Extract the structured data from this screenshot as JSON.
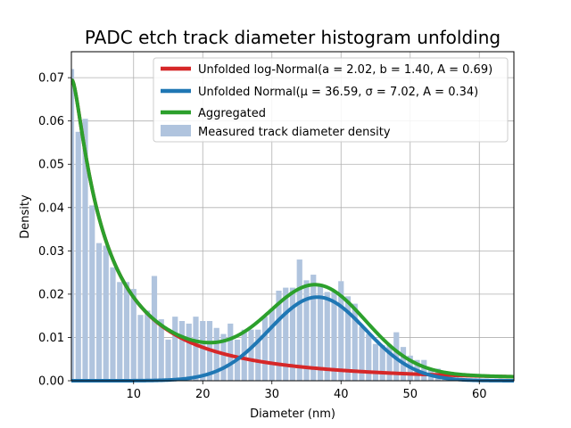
{
  "chart_data": {
    "type": "bar",
    "title": "PADC etch track diameter histogram unfolding",
    "xlabel": "Diameter (nm)",
    "ylabel": "Density",
    "xlim": [
      1,
      65
    ],
    "ylim": [
      0,
      0.076
    ],
    "x_ticks": [
      10,
      20,
      30,
      40,
      50,
      60
    ],
    "x_tick_labels": [
      "10",
      "20",
      "30",
      "40",
      "50",
      "60"
    ],
    "y_ticks": [
      0,
      0.01,
      0.02,
      0.03,
      0.04,
      0.05,
      0.06,
      0.07
    ],
    "y_tick_labels": [
      "0.00",
      "0.01",
      "0.02",
      "0.03",
      "0.04",
      "0.05",
      "0.06",
      "0.07"
    ],
    "grid": true,
    "legend_position": "top-right",
    "histogram": {
      "name": "Measured track diameter density",
      "color": "#b0c4de",
      "bin_centers": [
        1,
        2,
        3,
        4,
        5,
        6,
        7,
        8,
        9,
        10,
        11,
        12,
        13,
        14,
        15,
        16,
        17,
        18,
        19,
        20,
        21,
        22,
        23,
        24,
        25,
        26,
        27,
        28,
        29,
        30,
        31,
        32,
        33,
        34,
        35,
        36,
        37,
        38,
        39,
        40,
        41,
        42,
        43,
        44,
        45,
        46,
        47,
        48,
        49,
        50,
        51,
        52,
        53,
        54,
        55,
        56,
        57,
        58,
        59,
        60,
        61,
        62,
        63,
        64
      ],
      "values": [
        0.072,
        0.0575,
        0.0605,
        0.0405,
        0.0318,
        0.0312,
        0.0262,
        0.0228,
        0.0228,
        0.0212,
        0.0152,
        0.0162,
        0.0242,
        0.0142,
        0.0095,
        0.0148,
        0.0138,
        0.0132,
        0.0148,
        0.0138,
        0.0138,
        0.0122,
        0.0108,
        0.0132,
        0.0095,
        0.0118,
        0.0118,
        0.0118,
        0.0148,
        0.0165,
        0.0208,
        0.0215,
        0.0215,
        0.028,
        0.0232,
        0.0245,
        0.0218,
        0.0205,
        0.0205,
        0.023,
        0.0195,
        0.0178,
        0.0125,
        0.0108,
        0.0085,
        0.0082,
        0.0082,
        0.0112,
        0.0078,
        0.0058,
        0.0048,
        0.0048,
        0.0028,
        0.0028,
        0.001,
        0,
        0,
        0,
        0,
        0,
        0,
        0,
        0,
        0
      ]
    },
    "series": [
      {
        "name": "Unfolded log-Normal",
        "name_tex": "(a = 2.02, b = 1.40, A = 0.69)",
        "color": "#d62728",
        "model": "lognormal",
        "params": {
          "a": 2.02,
          "b": 1.4,
          "A": 0.69
        }
      },
      {
        "name": "Unfolded Normal",
        "name_tex": "(μ = 36.59, σ = 7.02, A = 0.34)",
        "color": "#1f77b4",
        "model": "normal",
        "params": {
          "mu": 36.59,
          "sigma": 7.02,
          "A": 0.34
        }
      },
      {
        "name": "Aggregated",
        "color": "#2ca02c",
        "model": "sum"
      }
    ],
    "legend": [
      {
        "label": "Unfolded log-Normal(a = 2.02, b = 1.40, A = 0.69)",
        "color": "#d62728",
        "kind": "line"
      },
      {
        "label": "Unfolded Normal(μ = 36.59, σ = 7.02, A = 0.34)",
        "color": "#1f77b4",
        "kind": "line"
      },
      {
        "label": "Aggregated",
        "color": "#2ca02c",
        "kind": "line"
      },
      {
        "label": "Measured track diameter density",
        "color": "#b0c4de",
        "kind": "patch"
      }
    ]
  }
}
